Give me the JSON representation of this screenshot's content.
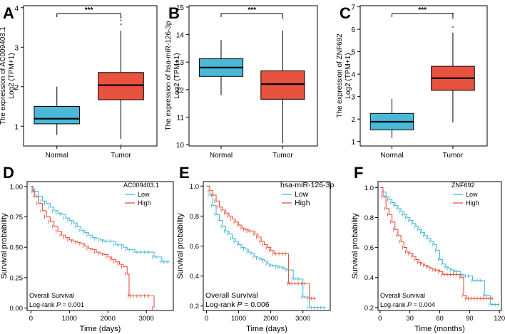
{
  "figure": {
    "colors": {
      "normal": "#4ab8d6",
      "tumor": "#e8523f",
      "low": "#4ab8d6",
      "high": "#e8523f",
      "axis": "#000000"
    }
  },
  "chart_data": [
    {
      "panel": "A",
      "type": "boxplot",
      "categories": [
        "Normal",
        "Tumor"
      ],
      "ylabel_line1": "The expression of AC009403.1",
      "ylabel_line2": "Log2 (TPM+1)",
      "ylim": [
        0.5,
        4.05
      ],
      "yticks": [
        1,
        2,
        3,
        4
      ],
      "boxes": [
        {
          "name": "Normal",
          "min": 0.78,
          "q1": 1.06,
          "median": 1.19,
          "q3": 1.5,
          "max": 2.0,
          "outliers": []
        },
        {
          "name": "Tumor",
          "min": 0.68,
          "q1": 1.67,
          "median": 2.04,
          "q3": 2.36,
          "max": 3.42,
          "outliers": [
            3.58,
            3.68,
            3.75,
            0.52
          ]
        }
      ],
      "significance": "***"
    },
    {
      "panel": "B",
      "type": "boxplot",
      "categories": [
        "Normal",
        "Tumor"
      ],
      "ylabel_line1": "The expression of hsa-miR-126-3p",
      "ylabel_line2": "Log2 (TPM+1)",
      "ylim": [
        9.95,
        15.05
      ],
      "yticks": [
        10,
        11,
        12,
        13,
        14,
        15
      ],
      "boxes": [
        {
          "name": "Normal",
          "min": 11.8,
          "q1": 12.48,
          "median": 12.8,
          "q3": 13.12,
          "max": 13.8,
          "outliers": []
        },
        {
          "name": "Tumor",
          "min": 10.05,
          "q1": 11.65,
          "median": 12.2,
          "q3": 12.68,
          "max": 14.15,
          "outliers": [
            14.6
          ]
        }
      ],
      "significance": "***"
    },
    {
      "panel": "C",
      "type": "boxplot",
      "categories": [
        "Normal",
        "Tumor"
      ],
      "ylabel_line1": "The expression of ZNF692",
      "ylabel_line2": "Log2 (TPM+1)",
      "ylim": [
        0.8,
        7.05
      ],
      "yticks": [
        1,
        2,
        3,
        4,
        5,
        6,
        7
      ],
      "boxes": [
        {
          "name": "Normal",
          "min": 1.15,
          "q1": 1.52,
          "median": 1.88,
          "q3": 2.25,
          "max": 2.9,
          "outliers": []
        },
        {
          "name": "Tumor",
          "min": 1.85,
          "q1": 3.28,
          "median": 3.82,
          "q3": 4.35,
          "max": 5.85,
          "outliers": [
            6.1,
            6.5,
            6.7
          ]
        }
      ],
      "significance": "***"
    },
    {
      "panel": "D",
      "type": "line",
      "xlabel": "Time (days)",
      "ylabel": "Survival probability",
      "xlim": [
        -100,
        3700
      ],
      "ylim": [
        -0.02,
        1.04
      ],
      "xticks": [
        0,
        1000,
        2000,
        3000
      ],
      "yticks": [
        0.0,
        0.25,
        0.5,
        0.75,
        1.0
      ],
      "ytick_labels": [
        "0.00",
        "0.25",
        "0.50",
        "0.75",
        "1.00"
      ],
      "legend_title": "AC009403.1",
      "legend": [
        "Low",
        "High"
      ],
      "annotation_line1": "Overall Survival",
      "annotation_prefix": "Log-rank ",
      "annotation_p": "P",
      "annotation_value": " = 0.001",
      "series": [
        {
          "name": "Low",
          "x": [
            0,
            50,
            100,
            200,
            300,
            400,
            500,
            600,
            700,
            800,
            900,
            1000,
            1100,
            1200,
            1300,
            1400,
            1500,
            1600,
            1700,
            1800,
            1900,
            2000,
            2100,
            2200,
            2300,
            2400,
            2500,
            2600,
            2700,
            2800,
            2900,
            3000,
            3100,
            3200,
            3300,
            3400,
            3500,
            3600
          ],
          "y": [
            1.0,
            0.98,
            0.96,
            0.92,
            0.88,
            0.86,
            0.83,
            0.8,
            0.78,
            0.77,
            0.74,
            0.72,
            0.7,
            0.67,
            0.64,
            0.62,
            0.6,
            0.58,
            0.57,
            0.56,
            0.55,
            0.55,
            0.55,
            0.52,
            0.52,
            0.5,
            0.48,
            0.48,
            0.46,
            0.46,
            0.46,
            0.46,
            0.46,
            0.42,
            0.42,
            0.38,
            0.38,
            0.38
          ]
        },
        {
          "name": "High",
          "x": [
            0,
            50,
            100,
            200,
            300,
            400,
            500,
            600,
            700,
            800,
            900,
            1000,
            1100,
            1200,
            1300,
            1400,
            1500,
            1600,
            1700,
            1800,
            1900,
            2000,
            2100,
            2200,
            2300,
            2400,
            2500,
            2550,
            2600,
            2700,
            2800,
            2900,
            3000,
            3100,
            3200
          ],
          "y": [
            1.0,
            0.96,
            0.92,
            0.86,
            0.8,
            0.75,
            0.71,
            0.67,
            0.63,
            0.6,
            0.58,
            0.56,
            0.55,
            0.54,
            0.53,
            0.51,
            0.49,
            0.48,
            0.46,
            0.45,
            0.44,
            0.42,
            0.4,
            0.38,
            0.36,
            0.34,
            0.28,
            0.1,
            0.1,
            0.1,
            0.1,
            0.1,
            0.1,
            0.1,
            0.0
          ]
        }
      ]
    },
    {
      "panel": "E",
      "type": "line",
      "xlabel": "Time (days)",
      "ylabel": "Survival probability",
      "xlim": [
        -100,
        3850
      ],
      "ylim": [
        0.17,
        1.03
      ],
      "xticks": [
        0,
        1000,
        2000,
        3000
      ],
      "yticks": [
        0.2,
        0.4,
        0.6,
        0.8,
        1.0
      ],
      "ytick_labels": [
        "0.2",
        "0.4",
        "0.6",
        "0.8",
        "1.0"
      ],
      "legend_title": "hsa-miR-126-3p",
      "legend": [
        "Low",
        "High"
      ],
      "annotation_line1": "Overall Survival",
      "annotation_prefix": "Log-rank ",
      "annotation_p": "P",
      "annotation_value": " = 0.006",
      "series": [
        {
          "name": "Low",
          "x": [
            0,
            100,
            200,
            300,
            400,
            500,
            600,
            700,
            800,
            900,
            1000,
            1100,
            1200,
            1300,
            1400,
            1500,
            1600,
            1700,
            1800,
            1900,
            2000,
            2100,
            2200,
            2300,
            2400,
            2500,
            2600,
            2700,
            2800,
            2900,
            3000,
            3100,
            3200,
            3300,
            3400,
            3500,
            3600,
            3700
          ],
          "y": [
            1.0,
            0.94,
            0.87,
            0.81,
            0.77,
            0.73,
            0.7,
            0.68,
            0.65,
            0.63,
            0.61,
            0.59,
            0.58,
            0.56,
            0.55,
            0.53,
            0.52,
            0.51,
            0.5,
            0.48,
            0.47,
            0.47,
            0.46,
            0.46,
            0.45,
            0.44,
            0.44,
            0.38,
            0.38,
            0.38,
            0.26,
            0.26,
            0.19,
            0.19,
            0.19,
            0.19,
            0.19,
            0.19
          ]
        },
        {
          "name": "High",
          "x": [
            0,
            100,
            200,
            300,
            400,
            500,
            600,
            700,
            800,
            900,
            1000,
            1100,
            1200,
            1300,
            1400,
            1500,
            1600,
            1700,
            1800,
            1900,
            2000,
            2100,
            2200,
            2300,
            2400,
            2500,
            2550,
            2600,
            2700,
            2800,
            2900,
            3000,
            3100,
            3200,
            3300,
            3400
          ],
          "y": [
            1.0,
            0.97,
            0.94,
            0.9,
            0.86,
            0.84,
            0.82,
            0.8,
            0.78,
            0.76,
            0.74,
            0.72,
            0.71,
            0.7,
            0.7,
            0.68,
            0.66,
            0.63,
            0.61,
            0.59,
            0.57,
            0.55,
            0.55,
            0.55,
            0.55,
            0.55,
            0.35,
            0.35,
            0.35,
            0.35,
            0.35,
            0.35,
            0.35,
            0.25,
            0.25,
            0.25
          ]
        }
      ]
    },
    {
      "panel": "F",
      "type": "line",
      "xlabel": "Time (months)",
      "ylabel": "Survival probability",
      "xlim": [
        -2,
        122
      ],
      "ylim": [
        0.18,
        1.04
      ],
      "xticks": [
        0,
        30,
        60,
        90,
        120
      ],
      "yticks": [
        0.2,
        0.4,
        0.6,
        0.8,
        1.0
      ],
      "ytick_labels": [
        "0.2",
        "0.4",
        "0.6",
        "0.8",
        "1.0"
      ],
      "legend_title": "ZNF692",
      "legend": [
        "Low",
        "High"
      ],
      "annotation_line1": "Overall Survival",
      "annotation_prefix": "Log-rank ",
      "annotation_p": "P",
      "annotation_value": " = 0.004",
      "series": [
        {
          "name": "Low",
          "x": [
            0,
            3,
            6,
            9,
            12,
            15,
            18,
            21,
            24,
            27,
            30,
            33,
            36,
            39,
            42,
            45,
            48,
            51,
            54,
            57,
            60,
            63,
            66,
            69,
            72,
            75,
            78,
            81,
            84,
            87,
            90,
            93,
            96,
            99,
            102,
            105,
            108,
            111,
            114,
            117,
            120
          ],
          "y": [
            1.0,
            0.97,
            0.94,
            0.92,
            0.9,
            0.88,
            0.86,
            0.84,
            0.82,
            0.8,
            0.78,
            0.76,
            0.74,
            0.72,
            0.7,
            0.68,
            0.66,
            0.64,
            0.62,
            0.58,
            0.52,
            0.49,
            0.47,
            0.46,
            0.45,
            0.44,
            0.44,
            0.42,
            0.41,
            0.41,
            0.41,
            0.38,
            0.38,
            0.38,
            0.38,
            0.28,
            0.28,
            0.22,
            0.22,
            0.22,
            0.22
          ]
        },
        {
          "name": "High",
          "x": [
            0,
            3,
            6,
            9,
            12,
            15,
            18,
            21,
            24,
            27,
            30,
            33,
            36,
            39,
            42,
            45,
            48,
            51,
            54,
            57,
            60,
            63,
            66,
            69,
            72,
            75,
            78,
            81,
            84,
            87,
            90,
            93,
            96,
            99,
            102,
            105,
            108,
            111,
            114
          ],
          "y": [
            1.0,
            0.94,
            0.86,
            0.82,
            0.77,
            0.72,
            0.68,
            0.64,
            0.6,
            0.57,
            0.56,
            0.54,
            0.52,
            0.5,
            0.49,
            0.48,
            0.47,
            0.46,
            0.45,
            0.45,
            0.44,
            0.42,
            0.42,
            0.42,
            0.42,
            0.42,
            0.42,
            0.4,
            0.28,
            0.26,
            0.26,
            0.26,
            0.26,
            0.26,
            0.26,
            0.26,
            0.26,
            0.26,
            0.26
          ]
        }
      ]
    }
  ]
}
